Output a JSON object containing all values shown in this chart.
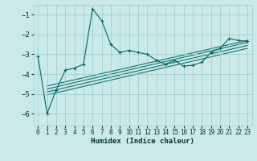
{
  "xlabel": "Humidex (Indice chaleur)",
  "bg_color": "#cce9e9",
  "grid_color": "#99cccc",
  "line_color": "#006666",
  "xlim": [
    -0.5,
    23.5
  ],
  "ylim": [
    -6.6,
    -0.5
  ],
  "xticks": [
    0,
    1,
    2,
    3,
    4,
    5,
    6,
    7,
    8,
    9,
    10,
    11,
    12,
    13,
    14,
    15,
    16,
    17,
    18,
    19,
    20,
    21,
    22,
    23
  ],
  "yticks": [
    -6,
    -5,
    -4,
    -3,
    -2,
    -1
  ],
  "main_x": [
    0,
    1,
    2,
    3,
    4,
    5,
    6,
    7,
    8,
    9,
    10,
    11,
    12,
    13,
    14,
    15,
    16,
    17,
    18,
    19,
    20,
    21,
    22,
    23
  ],
  "main_y": [
    -3.1,
    -6.0,
    -4.8,
    -3.8,
    -3.7,
    -3.5,
    -0.7,
    -1.3,
    -2.5,
    -2.9,
    -2.8,
    -2.9,
    -3.0,
    -3.3,
    -3.5,
    -3.3,
    -3.6,
    -3.55,
    -3.4,
    -2.9,
    -2.7,
    -2.2,
    -2.3,
    -2.35
  ],
  "linear_lines": [
    {
      "x": [
        1,
        23
      ],
      "y": [
        -4.6,
        -2.3
      ]
    },
    {
      "x": [
        1,
        23
      ],
      "y": [
        -4.75,
        -2.4
      ]
    },
    {
      "x": [
        1,
        23
      ],
      "y": [
        -4.9,
        -2.55
      ]
    },
    {
      "x": [
        1,
        23
      ],
      "y": [
        -5.05,
        -2.7
      ]
    }
  ]
}
